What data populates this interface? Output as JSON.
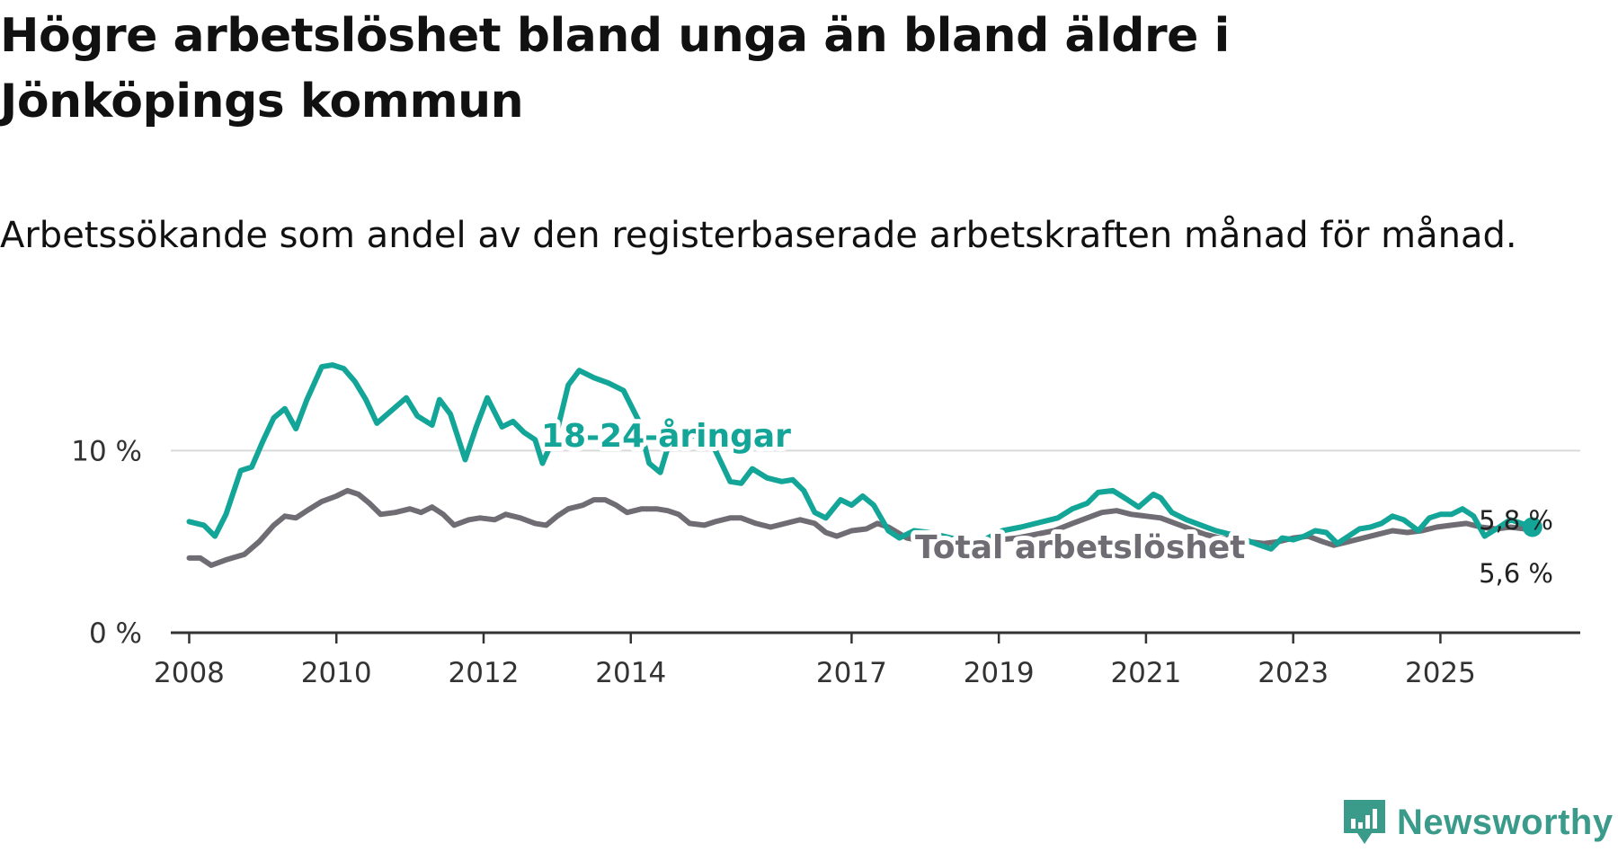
{
  "title": "Högre arbetslöshet bland unga än bland äldre i Jönköpings kommun",
  "subtitle": "Arbetssökande som andel av den registerbaserade arbetskraften månad för månad.",
  "brand": {
    "name": "Newsworthy",
    "icon": "newsworthy-logo-icon",
    "color": "#3a9b8b"
  },
  "colors": {
    "youth": "#13a597",
    "total": "#6f6d73",
    "grid": "#d9d9d9",
    "axis": "#333333"
  },
  "chart_data": {
    "type": "line",
    "title": "Högre arbetslöshet bland unga än bland äldre i Jönköpings kommun",
    "subtitle": "Arbetssökande som andel av den registerbaserade arbetskraften månad för månad.",
    "xlabel": "",
    "ylabel": "",
    "xlim": [
      2007.75,
      2026.9
    ],
    "ylim": [
      0,
      15
    ],
    "y_ticks": [
      {
        "value": 0,
        "label": "0 %"
      },
      {
        "value": 10,
        "label": "10 %"
      }
    ],
    "x_ticks": [
      {
        "value": 2008,
        "label": "2008"
      },
      {
        "value": 2010,
        "label": "2010"
      },
      {
        "value": 2012,
        "label": "2012"
      },
      {
        "value": 2014,
        "label": "2014"
      },
      {
        "value": 2017,
        "label": "2017"
      },
      {
        "value": 2019,
        "label": "2019"
      },
      {
        "value": 2021,
        "label": "2021"
      },
      {
        "value": 2023,
        "label": "2023"
      },
      {
        "value": 2025,
        "label": "2025"
      }
    ],
    "gridlines": [
      10
    ],
    "series": [
      {
        "name": "18-24-åringar",
        "label": "18-24-åringar",
        "end_label": "5,8 %",
        "points": [
          [
            2008.0,
            6.1
          ],
          [
            2008.2,
            5.9
          ],
          [
            2008.35,
            5.3
          ],
          [
            2008.5,
            6.5
          ],
          [
            2008.7,
            8.9
          ],
          [
            2008.85,
            9.1
          ],
          [
            2009.0,
            10.5
          ],
          [
            2009.15,
            11.8
          ],
          [
            2009.3,
            12.3
          ],
          [
            2009.45,
            11.2
          ],
          [
            2009.6,
            12.8
          ],
          [
            2009.8,
            14.6
          ],
          [
            2009.95,
            14.7
          ],
          [
            2010.1,
            14.5
          ],
          [
            2010.25,
            13.8
          ],
          [
            2010.4,
            12.8
          ],
          [
            2010.55,
            11.5
          ],
          [
            2010.75,
            12.2
          ],
          [
            2010.95,
            12.9
          ],
          [
            2011.1,
            11.9
          ],
          [
            2011.3,
            11.4
          ],
          [
            2011.4,
            12.8
          ],
          [
            2011.55,
            12.0
          ],
          [
            2011.75,
            9.5
          ],
          [
            2011.9,
            11.3
          ],
          [
            2012.05,
            12.9
          ],
          [
            2012.25,
            11.3
          ],
          [
            2012.4,
            11.6
          ],
          [
            2012.55,
            11.0
          ],
          [
            2012.7,
            10.6
          ],
          [
            2012.8,
            9.3
          ],
          [
            2013.0,
            11.1
          ],
          [
            2013.15,
            13.6
          ],
          [
            2013.3,
            14.4
          ],
          [
            2013.5,
            14.0
          ],
          [
            2013.7,
            13.7
          ],
          [
            2013.9,
            13.3
          ],
          [
            2014.1,
            11.7
          ],
          [
            2014.25,
            9.3
          ],
          [
            2014.4,
            8.8
          ],
          [
            2014.55,
            10.8
          ],
          [
            2014.7,
            10.6
          ],
          [
            2014.85,
            10.8
          ],
          [
            2015.0,
            10.8
          ],
          [
            2015.15,
            10.0
          ],
          [
            2015.35,
            8.3
          ],
          [
            2015.5,
            8.2
          ],
          [
            2015.65,
            9.0
          ],
          [
            2015.85,
            8.5
          ],
          [
            2016.05,
            8.3
          ],
          [
            2016.2,
            8.4
          ],
          [
            2016.35,
            7.8
          ],
          [
            2016.5,
            6.6
          ],
          [
            2016.65,
            6.3
          ],
          [
            2016.85,
            7.3
          ],
          [
            2017.0,
            7.0
          ],
          [
            2017.15,
            7.5
          ],
          [
            2017.3,
            7.0
          ],
          [
            2017.5,
            5.6
          ],
          [
            2017.65,
            5.2
          ],
          [
            2017.85,
            5.6
          ],
          [
            2018.05,
            5.5
          ],
          [
            2018.25,
            5.3
          ],
          [
            2018.45,
            5.1
          ],
          [
            2018.65,
            4.9
          ],
          [
            2018.85,
            5.2
          ],
          [
            2019.05,
            5.6
          ],
          [
            2019.3,
            5.8
          ],
          [
            2019.6,
            6.1
          ],
          [
            2019.8,
            6.3
          ],
          [
            2020.0,
            6.8
          ],
          [
            2020.2,
            7.1
          ],
          [
            2020.35,
            7.7
          ],
          [
            2020.55,
            7.8
          ],
          [
            2020.75,
            7.3
          ],
          [
            2020.9,
            6.9
          ],
          [
            2021.1,
            7.6
          ],
          [
            2021.2,
            7.4
          ],
          [
            2021.35,
            6.6
          ],
          [
            2021.55,
            6.2
          ],
          [
            2021.75,
            5.9
          ],
          [
            2021.95,
            5.6
          ],
          [
            2022.15,
            5.4
          ],
          [
            2022.35,
            5.1
          ],
          [
            2022.55,
            4.8
          ],
          [
            2022.7,
            4.6
          ],
          [
            2022.85,
            5.2
          ],
          [
            2023.0,
            5.1
          ],
          [
            2023.15,
            5.3
          ],
          [
            2023.3,
            5.6
          ],
          [
            2023.45,
            5.5
          ],
          [
            2023.6,
            4.9
          ],
          [
            2023.75,
            5.3
          ],
          [
            2023.9,
            5.7
          ],
          [
            2024.05,
            5.8
          ],
          [
            2024.2,
            6.0
          ],
          [
            2024.35,
            6.4
          ],
          [
            2024.5,
            6.2
          ],
          [
            2024.7,
            5.6
          ],
          [
            2024.85,
            6.3
          ],
          [
            2025.0,
            6.5
          ],
          [
            2025.15,
            6.5
          ],
          [
            2025.3,
            6.8
          ],
          [
            2025.45,
            6.4
          ],
          [
            2025.6,
            5.3
          ],
          [
            2025.8,
            5.8
          ],
          [
            2025.95,
            6.2
          ],
          [
            2026.1,
            6.0
          ],
          [
            2026.25,
            5.8
          ]
        ]
      },
      {
        "name": "Total arbetslöshet",
        "label": "Total arbetslöshet",
        "end_label": "5,6 %",
        "points": [
          [
            2008.0,
            4.1
          ],
          [
            2008.15,
            4.1
          ],
          [
            2008.3,
            3.7
          ],
          [
            2008.5,
            4.0
          ],
          [
            2008.75,
            4.3
          ],
          [
            2008.95,
            5.0
          ],
          [
            2009.15,
            5.9
          ],
          [
            2009.3,
            6.4
          ],
          [
            2009.45,
            6.3
          ],
          [
            2009.6,
            6.7
          ],
          [
            2009.8,
            7.2
          ],
          [
            2010.0,
            7.5
          ],
          [
            2010.15,
            7.8
          ],
          [
            2010.3,
            7.6
          ],
          [
            2010.45,
            7.1
          ],
          [
            2010.6,
            6.5
          ],
          [
            2010.8,
            6.6
          ],
          [
            2011.0,
            6.8
          ],
          [
            2011.15,
            6.6
          ],
          [
            2011.3,
            6.9
          ],
          [
            2011.45,
            6.5
          ],
          [
            2011.6,
            5.9
          ],
          [
            2011.8,
            6.2
          ],
          [
            2011.95,
            6.3
          ],
          [
            2012.15,
            6.2
          ],
          [
            2012.3,
            6.5
          ],
          [
            2012.5,
            6.3
          ],
          [
            2012.7,
            6.0
          ],
          [
            2012.85,
            5.9
          ],
          [
            2013.0,
            6.4
          ],
          [
            2013.15,
            6.8
          ],
          [
            2013.35,
            7.0
          ],
          [
            2013.5,
            7.3
          ],
          [
            2013.65,
            7.3
          ],
          [
            2013.8,
            7.0
          ],
          [
            2013.95,
            6.6
          ],
          [
            2014.15,
            6.8
          ],
          [
            2014.35,
            6.8
          ],
          [
            2014.5,
            6.7
          ],
          [
            2014.65,
            6.5
          ],
          [
            2014.8,
            6.0
          ],
          [
            2015.0,
            5.9
          ],
          [
            2015.15,
            6.1
          ],
          [
            2015.35,
            6.3
          ],
          [
            2015.5,
            6.3
          ],
          [
            2015.7,
            6.0
          ],
          [
            2015.9,
            5.8
          ],
          [
            2016.1,
            6.0
          ],
          [
            2016.3,
            6.2
          ],
          [
            2016.5,
            6.0
          ],
          [
            2016.65,
            5.5
          ],
          [
            2016.8,
            5.3
          ],
          [
            2017.0,
            5.6
          ],
          [
            2017.2,
            5.7
          ],
          [
            2017.35,
            6.0
          ],
          [
            2017.5,
            5.8
          ],
          [
            2017.75,
            5.2
          ],
          [
            2018.0,
            5.0
          ],
          [
            2018.25,
            4.9
          ],
          [
            2018.5,
            4.9
          ],
          [
            2018.75,
            5.0
          ],
          [
            2019.0,
            5.1
          ],
          [
            2019.25,
            5.2
          ],
          [
            2019.5,
            5.4
          ],
          [
            2019.75,
            5.6
          ],
          [
            2020.0,
            6.0
          ],
          [
            2020.2,
            6.3
          ],
          [
            2020.4,
            6.6
          ],
          [
            2020.6,
            6.7
          ],
          [
            2020.8,
            6.5
          ],
          [
            2021.0,
            6.4
          ],
          [
            2021.2,
            6.3
          ],
          [
            2021.4,
            6.0
          ],
          [
            2021.6,
            5.7
          ],
          [
            2021.8,
            5.4
          ],
          [
            2022.0,
            5.2
          ],
          [
            2022.2,
            5.1
          ],
          [
            2022.4,
            5.0
          ],
          [
            2022.6,
            4.9
          ],
          [
            2022.8,
            5.0
          ],
          [
            2023.0,
            5.2
          ],
          [
            2023.2,
            5.3
          ],
          [
            2023.4,
            5.0
          ],
          [
            2023.55,
            4.8
          ],
          [
            2023.75,
            5.0
          ],
          [
            2023.95,
            5.2
          ],
          [
            2024.15,
            5.4
          ],
          [
            2024.35,
            5.6
          ],
          [
            2024.55,
            5.5
          ],
          [
            2024.75,
            5.6
          ],
          [
            2024.95,
            5.8
          ],
          [
            2025.15,
            5.9
          ],
          [
            2025.35,
            6.0
          ],
          [
            2025.55,
            5.8
          ],
          [
            2025.75,
            5.7
          ],
          [
            2025.95,
            5.8
          ],
          [
            2026.15,
            5.7
          ],
          [
            2026.25,
            5.6
          ]
        ]
      }
    ]
  }
}
